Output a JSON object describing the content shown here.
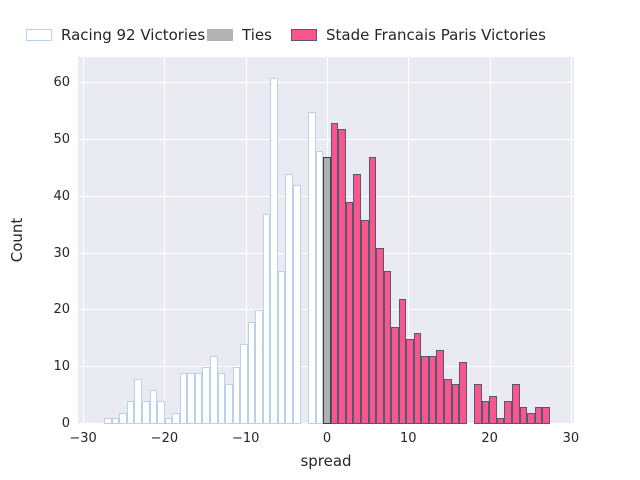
{
  "figure": {
    "kind": "seaborn histogram",
    "background": "#ffffff",
    "plot_background": "#eaeaf2",
    "grid_color": "#ffffff",
    "text_color": "#262626"
  },
  "legend": {
    "items": [
      {
        "label": "Racing 92 Victories",
        "fill": "#ffffff",
        "edge": "#b9d2e7"
      },
      {
        "label": "Ties",
        "fill": "#b3b3b3",
        "edge": "#b3b3b3"
      },
      {
        "label": "Stade Francais Paris Victories",
        "fill": "#f9578b",
        "edge": "#535875"
      }
    ]
  },
  "axes": {
    "xlabel": "spread",
    "ylabel": "Count",
    "xticks": [
      -30,
      -20,
      -10,
      0,
      10,
      20,
      30
    ],
    "yticks": [
      0,
      10,
      20,
      30,
      40,
      50,
      60
    ]
  },
  "chart_data": {
    "type": "bar",
    "subtype": "histogram",
    "title": "",
    "xlabel": "spread",
    "ylabel": "Count",
    "xlim": [
      -30.6,
      30.4
    ],
    "ylim": [
      0,
      64.6
    ],
    "grid": true,
    "legend_position": "top",
    "bin_width_units": 0.93,
    "first_bin_center": -27,
    "series": [
      {
        "name": "Racing 92 Victories",
        "fill": "#ffffff",
        "edge": "#b9d2e7",
        "counts": [
          1,
          1,
          2,
          4,
          8,
          4,
          6,
          4,
          1,
          2,
          9,
          9,
          9,
          10,
          12,
          9,
          7,
          10,
          14,
          18,
          20,
          37,
          61,
          27,
          44,
          42,
          0,
          55,
          48
        ]
      },
      {
        "name": "Ties",
        "fill": "#b0b0b0",
        "edge": "#3f3f3f",
        "counts": [
          47
        ]
      },
      {
        "name": "Stade Francais Paris Victories",
        "fill": "#f9578b",
        "edge": "#535875",
        "counts": [
          53,
          52,
          39,
          44,
          36,
          47,
          31,
          27,
          17,
          22,
          15,
          16,
          12,
          12,
          13,
          8,
          7,
          11,
          0,
          7,
          4,
          5,
          1,
          4,
          7,
          3,
          2,
          3,
          3
        ]
      }
    ]
  }
}
